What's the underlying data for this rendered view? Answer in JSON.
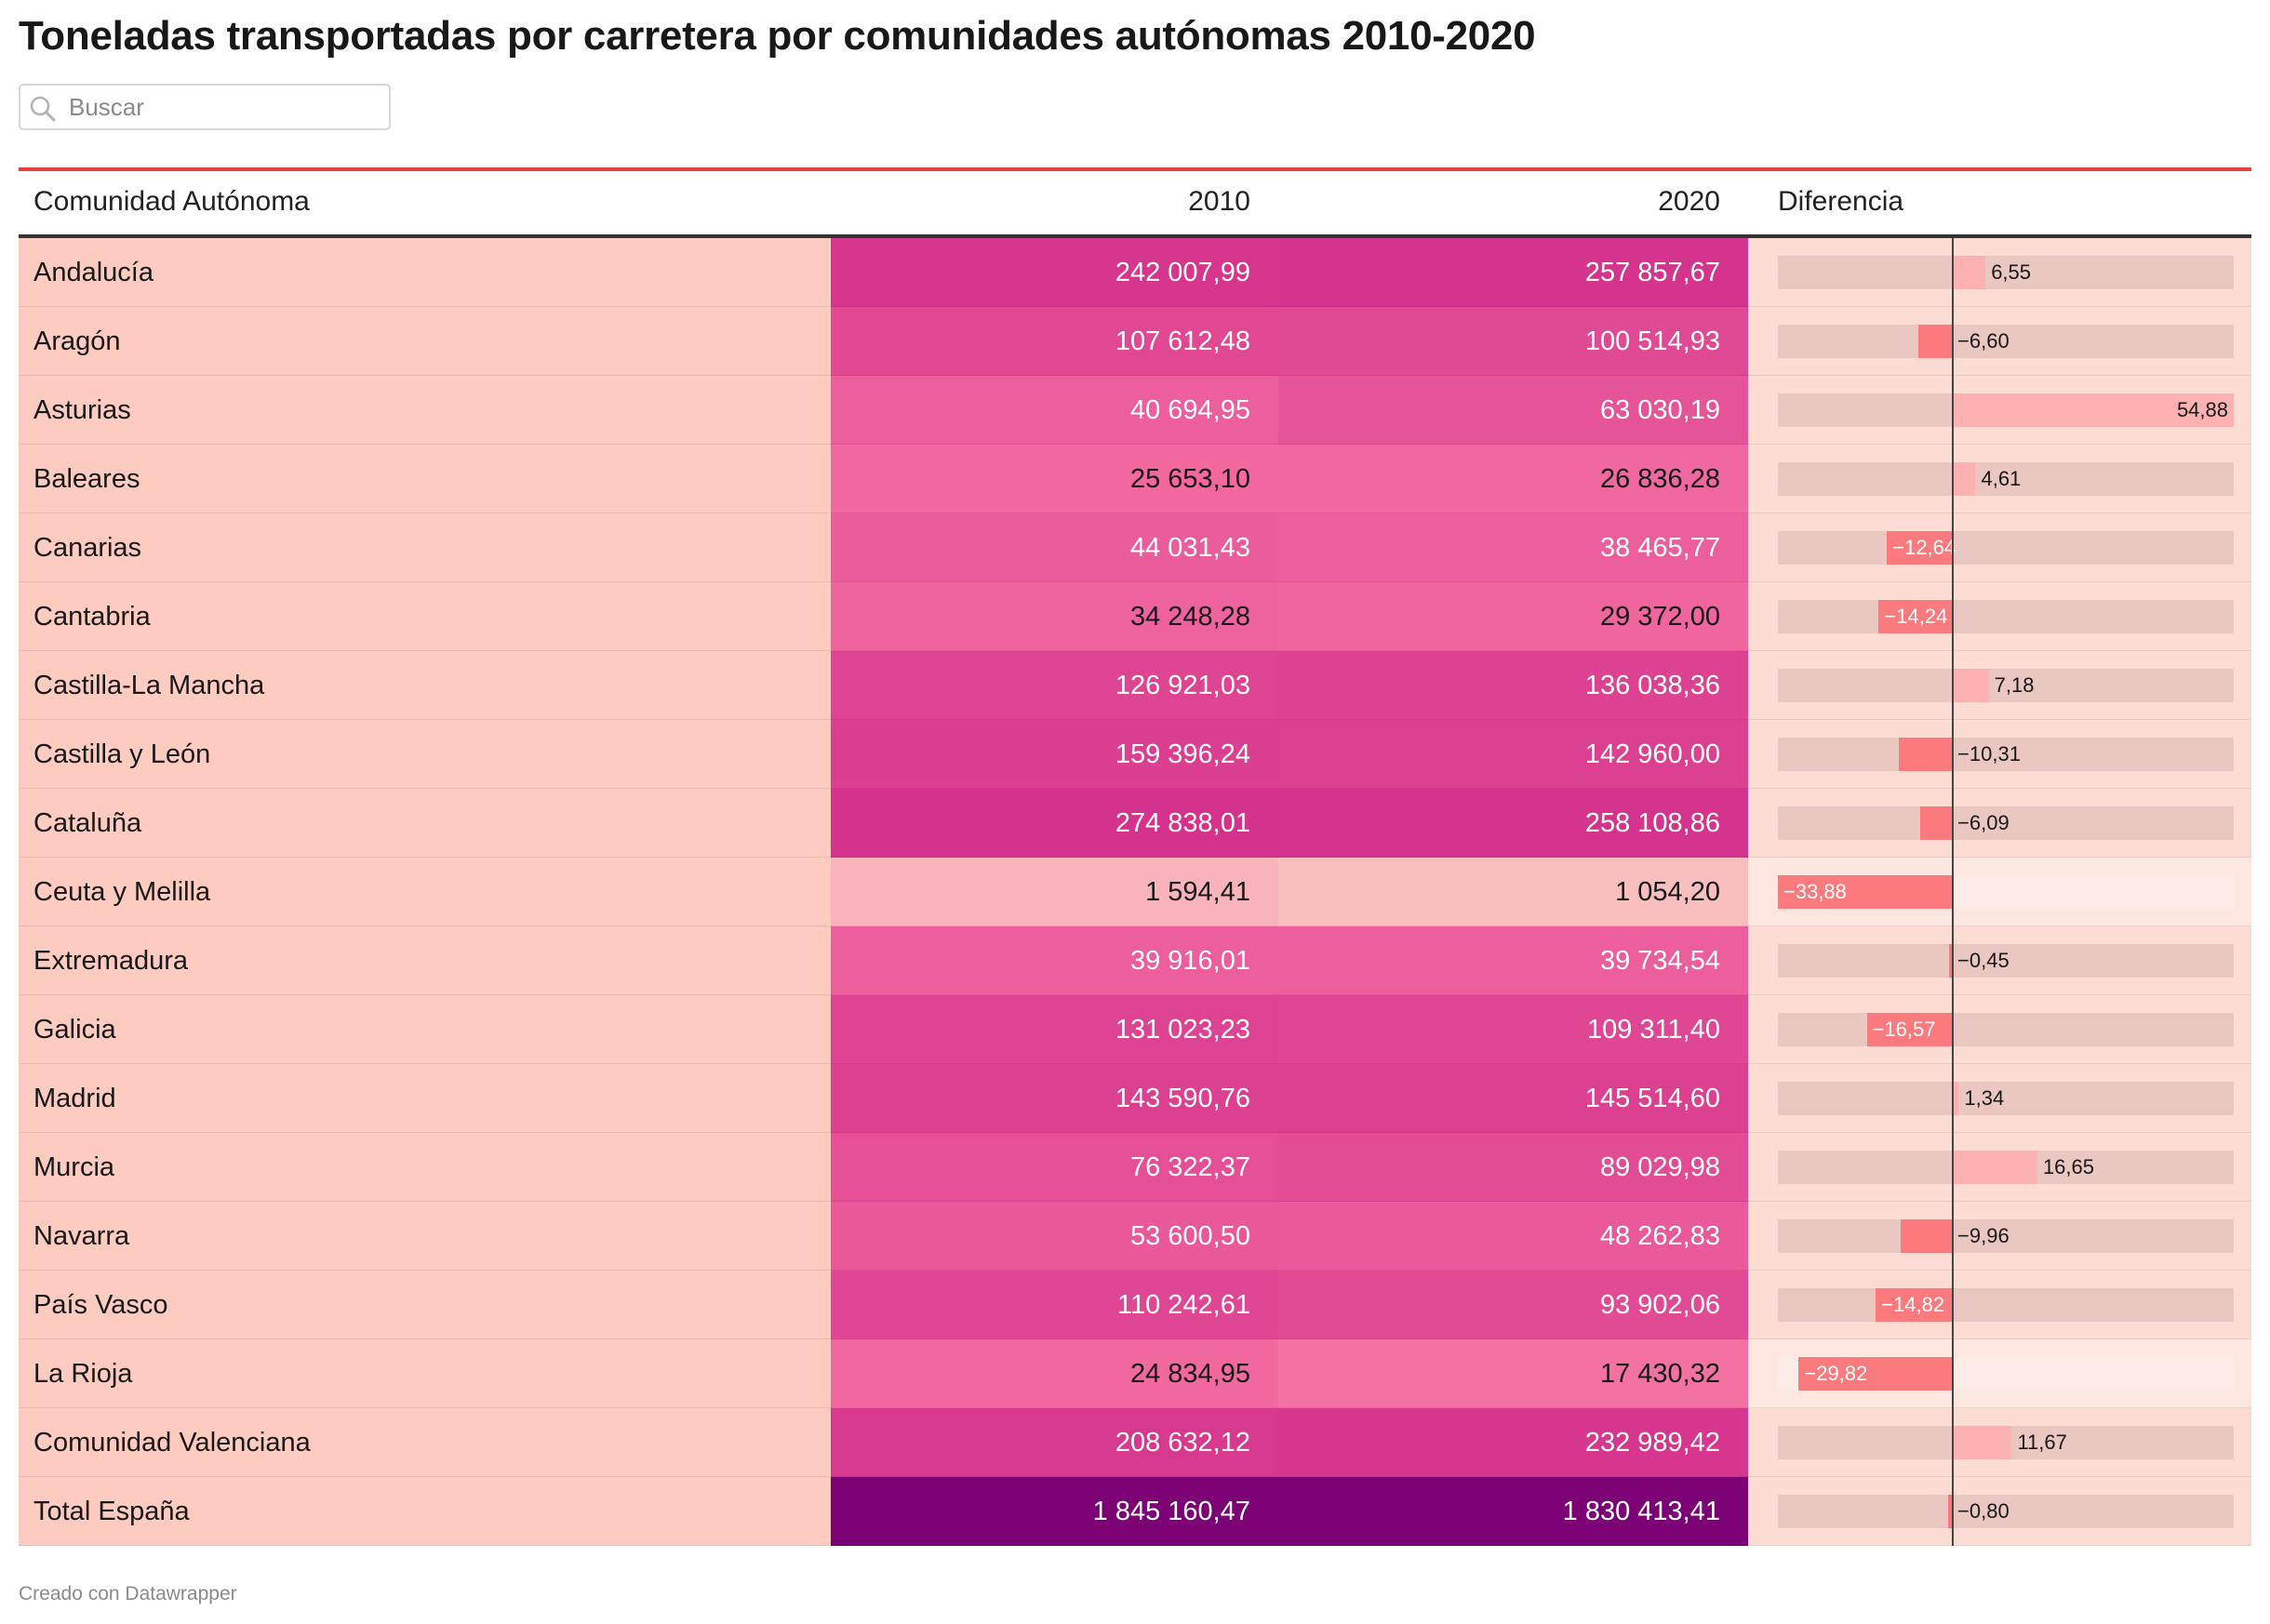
{
  "page": {
    "title": "Toneladas transportadas por carretera por comunidades autónomas 2010-2020",
    "credit": "Creado con Datawrapper"
  },
  "search": {
    "placeholder": "Buscar",
    "icon": "search-icon",
    "value": ""
  },
  "colors": {
    "accent_rule": "#e8413b",
    "name_cell": "#fdcbc0",
    "diff_cell": "#fcdcd3",
    "diff_track": "#ebc7c2",
    "bar_negative": "#fb7a7e",
    "bar_positive": "#fdb1b1",
    "heat_low": "#f9c0c0",
    "heat_high": "#7a0075"
  },
  "table": {
    "headers": {
      "name": "Comunidad Autónoma",
      "y2010": "2010",
      "y2020": "2020",
      "diff": "Diferencia"
    },
    "rows": [
      {
        "name": "Andalucía",
        "y2010": "242 007,99",
        "y2020": "257 857,67",
        "diff_label": "6,55"
      },
      {
        "name": "Aragón",
        "y2010": "107 612,48",
        "y2020": "100 514,93",
        "diff_label": "−6,60"
      },
      {
        "name": "Asturias",
        "y2010": "40 694,95",
        "y2020": "63 030,19",
        "diff_label": "54,88"
      },
      {
        "name": "Baleares",
        "y2010": "25 653,10",
        "y2020": "26 836,28",
        "diff_label": "4,61"
      },
      {
        "name": "Canarias",
        "y2010": "44 031,43",
        "y2020": "38 465,77",
        "diff_label": "−12,64"
      },
      {
        "name": "Cantabria",
        "y2010": "34 248,28",
        "y2020": "29 372,00",
        "diff_label": "−14,24"
      },
      {
        "name": "Castilla-La Mancha",
        "y2010": "126 921,03",
        "y2020": "136 038,36",
        "diff_label": "7,18"
      },
      {
        "name": "Castilla y León",
        "y2010": "159 396,24",
        "y2020": "142 960,00",
        "diff_label": "−10,31"
      },
      {
        "name": "Cataluña",
        "y2010": "274 838,01",
        "y2020": "258 108,86",
        "diff_label": "−6,09"
      },
      {
        "name": "Ceuta y Melilla",
        "y2010": "1 594,41",
        "y2020": "1 054,20",
        "diff_label": "−33,88"
      },
      {
        "name": "Extremadura",
        "y2010": "39 916,01",
        "y2020": "39 734,54",
        "diff_label": "−0,45"
      },
      {
        "name": "Galicia",
        "y2010": "131 023,23",
        "y2020": "109 311,40",
        "diff_label": "−16,57"
      },
      {
        "name": "Madrid",
        "y2010": "143 590,76",
        "y2020": "145 514,60",
        "diff_label": "1,34"
      },
      {
        "name": "Murcia",
        "y2010": "76 322,37",
        "y2020": "89 029,98",
        "diff_label": "16,65"
      },
      {
        "name": "Navarra",
        "y2010": "53 600,50",
        "y2020": "48 262,83",
        "diff_label": "−9,96"
      },
      {
        "name": "País Vasco",
        "y2010": "110 242,61",
        "y2020": "93 902,06",
        "diff_label": "−14,82"
      },
      {
        "name": "La Rioja",
        "y2010": "24 834,95",
        "y2020": "17 430,32",
        "diff_label": "−29,82"
      },
      {
        "name": "Comunidad Valenciana",
        "y2010": "208 632,12",
        "y2020": "232 989,42",
        "diff_label": "11,67"
      },
      {
        "name": "Total España",
        "y2010": "1 845 160,47",
        "y2020": "1 830 413,41",
        "diff_label": "−0,80"
      }
    ]
  },
  "chart_data": {
    "type": "table",
    "title": "Toneladas transportadas por carretera por comunidades autónomas 2010-2020",
    "columns": [
      "Comunidad Autónoma",
      "2010",
      "2020",
      "Diferencia"
    ],
    "categories": [
      "Andalucía",
      "Aragón",
      "Asturias",
      "Baleares",
      "Canarias",
      "Cantabria",
      "Castilla-La Mancha",
      "Castilla y León",
      "Cataluña",
      "Ceuta y Melilla",
      "Extremadura",
      "Galicia",
      "Madrid",
      "Murcia",
      "Navarra",
      "País Vasco",
      "La Rioja",
      "Comunidad Valenciana",
      "Total España"
    ],
    "series": [
      {
        "name": "2010",
        "values": [
          242007.99,
          107612.48,
          40694.95,
          25653.1,
          44031.43,
          34248.28,
          126921.03,
          159396.24,
          274838.01,
          1594.41,
          39916.01,
          131023.23,
          143590.76,
          76322.37,
          53600.5,
          110242.61,
          24834.95,
          208632.12,
          1845160.47
        ]
      },
      {
        "name": "2020",
        "values": [
          257857.67,
          100514.93,
          63030.19,
          26836.28,
          38465.77,
          29372.0,
          136038.36,
          142960.0,
          258108.86,
          1054.2,
          39734.54,
          109311.4,
          145514.6,
          89029.98,
          48262.83,
          93902.06,
          17430.32,
          232989.42,
          1830413.41
        ]
      },
      {
        "name": "Diferencia",
        "values": [
          6.55,
          -6.6,
          54.88,
          4.61,
          -12.64,
          -14.24,
          7.18,
          -10.31,
          -6.09,
          -33.88,
          -0.45,
          -16.57,
          1.34,
          16.65,
          -9.96,
          -14.82,
          -29.82,
          11.67,
          -0.8
        ]
      }
    ],
    "diff_range": [
      -33.88,
      54.88
    ]
  }
}
